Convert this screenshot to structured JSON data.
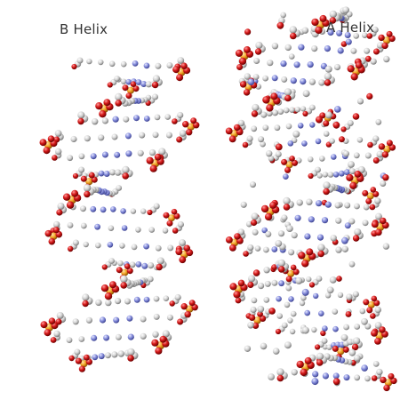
{
  "labels": {
    "b_helix": "B Helix",
    "a_helix": "A Helix"
  },
  "atom_colors": {
    "carbon": "#c8c8c8",
    "nitrogen": "#7f86d8",
    "oxygen": "#d21818",
    "phosphorus": "#f0a020"
  },
  "background": "#ffffff"
}
